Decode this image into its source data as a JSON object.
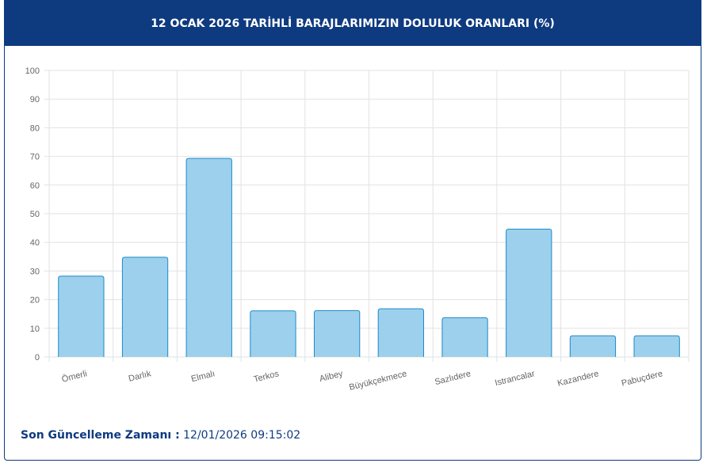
{
  "chart_data": {
    "type": "bar",
    "title": "12 OCAK 2026 TARİHLİ BARAJLARIMIZIN DOLULUK ORANLARI (%)",
    "categories": [
      "Ömerli",
      "Darlık",
      "Elmalı",
      "Terkos",
      "Alibey",
      "Büyükçekmece",
      "Sazlıdere",
      "Istrancalar",
      "Kazandere",
      "Pabuçdere"
    ],
    "values": [
      28.2,
      34.8,
      69.3,
      16.1,
      16.2,
      16.8,
      13.7,
      44.6,
      7.4,
      7.4
    ],
    "color": "#9dd0ec",
    "border_color": "#1a8cc9",
    "ylim": [
      0,
      100
    ],
    "yticks": [
      0,
      10,
      20,
      30,
      40,
      50,
      60,
      70,
      80,
      90,
      100
    ],
    "grid": true
  },
  "footer": {
    "label": "Son Güncelleme Zamanı :",
    "value": "12/01/2026 09:15:02"
  }
}
